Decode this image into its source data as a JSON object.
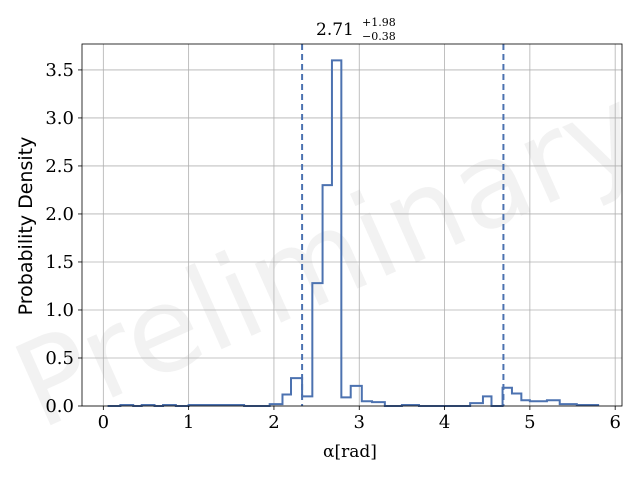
{
  "chart_data": {
    "type": "histogram",
    "title": {
      "median": "2.71",
      "upper": "+1.98",
      "lower": "−0.38"
    },
    "xlabel": "α[rad]",
    "ylabel": "Probability Density",
    "xlim": [
      -0.25,
      6.08
    ],
    "ylim": [
      0,
      3.77
    ],
    "xticks": [
      0,
      1,
      2,
      3,
      4,
      5,
      6
    ],
    "xtick_labels": [
      "0",
      "1",
      "2",
      "3",
      "4",
      "5",
      "6"
    ],
    "yticks": [
      0,
      0.5,
      1,
      1.5,
      2,
      2.5,
      3,
      3.5
    ],
    "ytick_labels": [
      "0.0",
      "0.5",
      "1.0",
      "1.5",
      "2.0",
      "2.5",
      "3.0",
      "3.5"
    ],
    "grid": true,
    "watermark": "Preliminary",
    "line_color": "#4c72b0",
    "bin_edges": [
      0.05,
      0.2,
      0.35,
      0.45,
      0.6,
      0.7,
      0.85,
      1.0,
      1.2,
      1.4,
      1.65,
      1.95,
      2.1,
      2.2,
      2.33,
      2.45,
      2.57,
      2.68,
      2.79,
      2.9,
      3.03,
      3.15,
      3.3,
      3.5,
      3.7,
      4.3,
      4.45,
      4.55,
      4.68,
      4.79,
      4.9,
      5.0,
      5.2,
      5.35,
      5.55,
      5.8
    ],
    "densities": [
      0.0,
      0.01,
      0.0,
      0.01,
      0.0,
      0.01,
      0.0,
      0.01,
      0.01,
      0.01,
      0.0,
      0.02,
      0.12,
      0.29,
      0.1,
      1.28,
      2.3,
      3.6,
      0.09,
      0.21,
      0.05,
      0.04,
      0.0,
      0.01,
      0.0,
      0.03,
      0.1,
      0.0,
      0.19,
      0.13,
      0.06,
      0.05,
      0.06,
      0.02,
      0.01
    ],
    "credible_interval_lines": [
      2.33,
      4.69
    ]
  }
}
